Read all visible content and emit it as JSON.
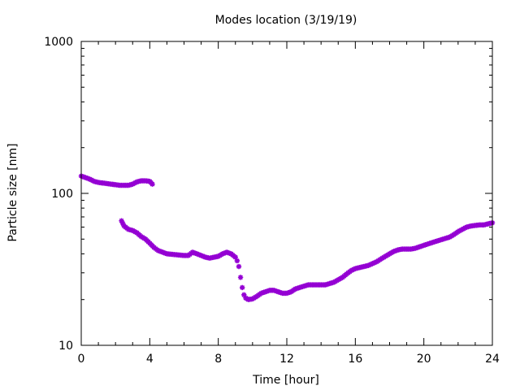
{
  "chart_data": {
    "type": "scatter",
    "title": "Modes location (3/19/19)",
    "xlabel": "Time [hour]",
    "ylabel": "Particle size [nm]",
    "xlim": [
      0,
      24
    ],
    "ylim": [
      10,
      1000
    ],
    "yscale": "log",
    "grid": false,
    "x_ticks": [
      0,
      4,
      8,
      12,
      16,
      20,
      24
    ],
    "x_tick_labels": [
      "0",
      "4",
      "8",
      "12",
      "16",
      "20",
      "24"
    ],
    "y_ticks": [
      10,
      100,
      1000
    ],
    "y_tick_labels": [
      "10",
      "100",
      "1000"
    ],
    "marker": "star",
    "color": "#9400d3",
    "series": [
      {
        "x": [
          0,
          0.25,
          0.5,
          0.75,
          1.0,
          1.25,
          1.5,
          1.75,
          2.0,
          2.25,
          2.5,
          2.75,
          3.0,
          3.25,
          3.5,
          3.75,
          4.0,
          4.15
        ],
        "y": [
          130,
          127,
          124,
          120,
          118,
          117,
          116,
          115,
          114,
          113,
          113,
          113,
          115,
          119,
          121,
          121,
          120,
          115
        ]
      },
      {
        "x": [
          2.35,
          2.5,
          2.75,
          3.0,
          3.25,
          3.5,
          3.75,
          4.0,
          4.25,
          4.5,
          4.75,
          5.0,
          5.5,
          6.0,
          6.25,
          6.5,
          6.75,
          7.0,
          7.25,
          7.5,
          7.75,
          8.0,
          8.25,
          8.5,
          8.75,
          9.0,
          9.1,
          9.2,
          9.3,
          9.4,
          9.5,
          9.6,
          9.75,
          10.0,
          10.25,
          10.5,
          10.75,
          11.0,
          11.25,
          11.5,
          11.75,
          12.0,
          12.25,
          12.5,
          12.75,
          13.0,
          13.25,
          13.5,
          13.75,
          14.0,
          14.25,
          14.5,
          14.75,
          15.0,
          15.25,
          15.5,
          15.75,
          16.0,
          16.25,
          16.5,
          16.75,
          17.0,
          17.25,
          17.5,
          17.75,
          18.0,
          18.25,
          18.5,
          18.75,
          19.0,
          19.25,
          19.5,
          19.75,
          20.0,
          20.25,
          20.5,
          20.75,
          21.0,
          21.25,
          21.5,
          21.75,
          22.0,
          22.25,
          22.5,
          22.75,
          23.0,
          23.25,
          23.5,
          23.75,
          24.0
        ],
        "y": [
          66,
          61,
          58,
          57,
          55,
          52,
          50,
          47,
          44,
          42,
          41,
          40,
          39.5,
          39,
          39,
          41,
          40,
          39,
          38,
          37.5,
          38,
          38.5,
          40,
          41,
          40,
          38,
          36,
          33,
          28,
          24,
          21.5,
          20.5,
          20,
          20.2,
          21,
          22,
          22.5,
          23,
          23,
          22.5,
          22,
          22,
          22.5,
          23.5,
          24,
          24.5,
          25,
          25,
          25,
          25,
          25,
          25.5,
          26,
          27,
          28,
          29.5,
          31,
          32,
          32.5,
          33,
          33.5,
          34.5,
          35.5,
          37,
          38.5,
          40,
          41.5,
          42.5,
          43,
          43,
          43,
          43.5,
          44.5,
          45.5,
          46.5,
          47.5,
          48.5,
          49.5,
          50.5,
          51.5,
          53.5,
          56,
          58,
          60,
          61,
          61.5,
          62,
          62,
          63,
          64
        ]
      }
    ]
  }
}
